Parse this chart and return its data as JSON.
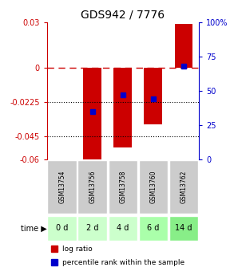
{
  "title": "GDS942 / 7776",
  "samples": [
    "GSM13754",
    "GSM13756",
    "GSM13758",
    "GSM13760",
    "GSM13762"
  ],
  "timepoints": [
    "0 d",
    "2 d",
    "4 d",
    "6 d",
    "14 d"
  ],
  "log_ratios": [
    0.0,
    -0.062,
    -0.052,
    -0.037,
    0.029
  ],
  "percentile_ranks": [
    null,
    35,
    47,
    44,
    68
  ],
  "ylim_left": [
    -0.06,
    0.03
  ],
  "ylim_right": [
    0,
    100
  ],
  "yticks_left": [
    0.03,
    0,
    -0.0225,
    -0.045,
    -0.06
  ],
  "yticks_left_labels": [
    "0.03",
    "0",
    "-0.0225",
    "-0.045",
    "-0.06"
  ],
  "yticks_right": [
    100,
    75,
    50,
    25,
    0
  ],
  "yticks_right_labels": [
    "100%",
    "75",
    "50",
    "25",
    "0"
  ],
  "hline_y": 0.0,
  "dotted_lines": [
    -0.0225,
    -0.045
  ],
  "bar_color": "#cc0000",
  "dot_color": "#0000cc",
  "bar_width": 0.6,
  "time_row_colors": [
    "#ccffcc",
    "#ccffcc",
    "#ccffcc",
    "#aaffaa",
    "#88ee88"
  ],
  "sample_row_color": "#cccccc",
  "background_color": "#ffffff",
  "title_color": "#000000",
  "left_axis_color": "#cc0000",
  "right_axis_color": "#0000cc"
}
